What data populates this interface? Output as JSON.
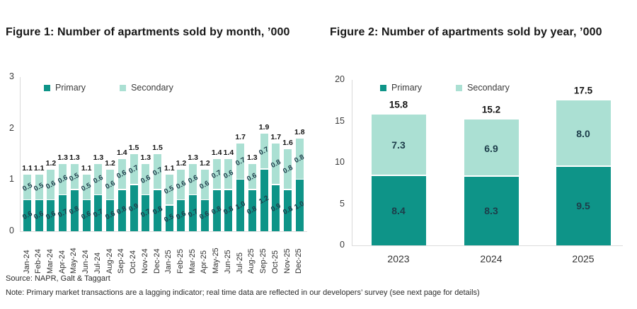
{
  "colors": {
    "primary": "#0E9488",
    "secondary": "#ABE0D3",
    "in_bar_label": "#1d3d4a",
    "total_label": "#141414",
    "axis_line": "#d9d9d9"
  },
  "footer": {
    "source": "Source: NAPR, Galt & Taggart",
    "note": "Note: Primary market transactions are a lagging indicator; real time data are reflected in our developers’ survey (see next page for details)"
  },
  "chart_data": [
    {
      "type": "bar",
      "stacked": true,
      "title": "Figure 1: Number of apartments sold by month, ’000",
      "categories": [
        "Jan-24",
        "Feb-24",
        "Mar-24",
        "Apr-24",
        "May-24",
        "Jun-24",
        "Jul-24",
        "Aug-24",
        "Sep-24",
        "Oct-24",
        "Nov-24",
        "Dec-24",
        "Jan-25",
        "Feb-25",
        "Mar-25",
        "Apr-25",
        "May-25",
        "Jun-25",
        "Jul-25",
        "Aug-25",
        "Sep-25",
        "Oct-25",
        "Nov-25",
        "Dec-25"
      ],
      "series": [
        {
          "name": "Primary",
          "values": [
            0.6,
            0.6,
            0.6,
            0.7,
            0.8,
            0.6,
            0.7,
            0.6,
            0.8,
            0.9,
            0.7,
            0.8,
            0.5,
            0.6,
            0.7,
            0.6,
            0.8,
            0.8,
            1.0,
            0.8,
            1.2,
            0.9,
            0.8,
            1.0
          ]
        },
        {
          "name": "Secondary",
          "values": [
            0.5,
            0.5,
            0.6,
            0.6,
            0.5,
            0.5,
            0.6,
            0.6,
            0.6,
            0.7,
            0.6,
            0.7,
            0.5,
            0.6,
            0.6,
            0.6,
            0.7,
            0.6,
            0.7,
            0.6,
            0.7,
            0.8,
            0.8,
            0.8
          ]
        }
      ],
      "totals": [
        1.1,
        1.1,
        1.2,
        1.3,
        1.3,
        1.1,
        1.3,
        1.2,
        1.4,
        1.5,
        1.3,
        1.5,
        1.1,
        1.2,
        1.3,
        1.2,
        1.4,
        1.4,
        1.7,
        1.3,
        1.9,
        1.7,
        1.6,
        1.8
      ],
      "ylim": [
        0,
        3
      ],
      "yticks": [
        0,
        1,
        2,
        3
      ],
      "legend_position": "top-left",
      "grid": false
    },
    {
      "type": "bar",
      "stacked": true,
      "title": "Figure 2: Number of apartments sold by year, ’000",
      "categories": [
        "2023",
        "2024",
        "2025"
      ],
      "series": [
        {
          "name": "Primary",
          "values": [
            8.4,
            8.3,
            9.5
          ]
        },
        {
          "name": "Secondary",
          "values": [
            7.3,
            6.9,
            8.0
          ]
        }
      ],
      "totals": [
        15.8,
        15.2,
        17.5
      ],
      "ylim": [
        0,
        20
      ],
      "yticks": [
        0,
        5,
        10,
        15,
        20
      ],
      "legend_position": "top-left",
      "grid": false
    }
  ]
}
